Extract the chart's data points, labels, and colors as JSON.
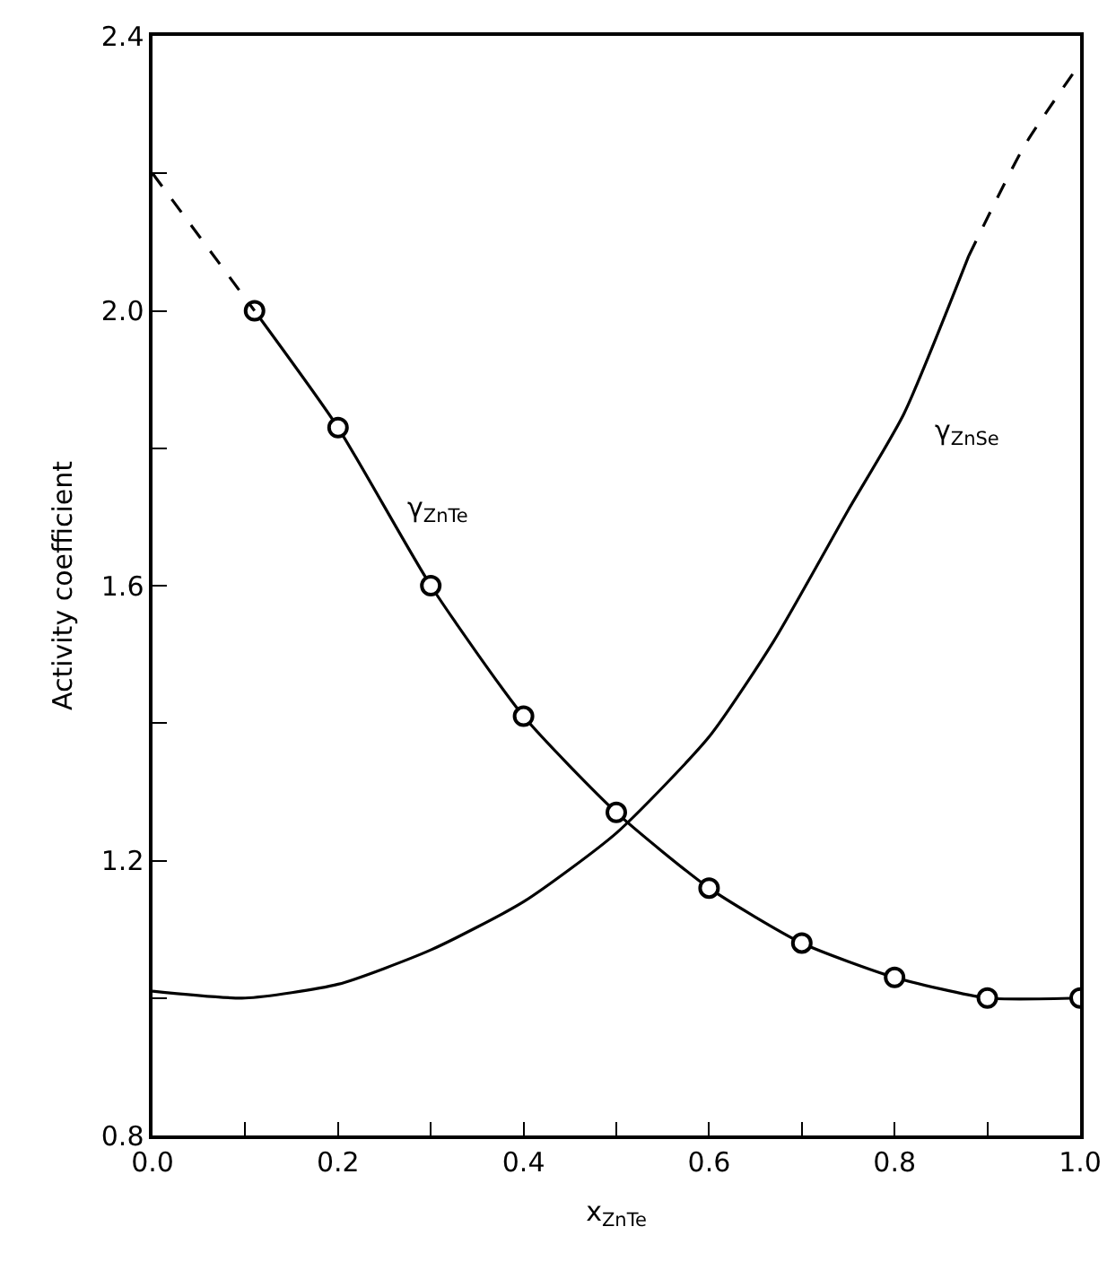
{
  "chart_data": {
    "type": "line",
    "xlabel": "x$_{ZnTe}$",
    "ylabel": "Activity coefficient",
    "xlim": [
      0,
      1
    ],
    "ylim": [
      0.8,
      2.4
    ],
    "xticks": [
      {
        "value": 0,
        "label": "0.0"
      },
      {
        "value": 0.1,
        "label": null
      },
      0.2,
      {
        "value": 0.3,
        "label": null
      },
      0.4,
      {
        "value": 0.5,
        "label": null
      },
      0.6,
      {
        "value": 0.7,
        "label": null
      },
      0.8,
      {
        "value": 0.9,
        "label": null
      },
      {
        "value": 1,
        "label": "1.0"
      }
    ],
    "yticks": [
      0.8,
      {
        "value": 1.0,
        "label": null
      },
      1.2,
      {
        "value": 1.4,
        "label": null
      },
      1.6,
      {
        "value": 1.8,
        "label": null
      },
      {
        "value": 2,
        "label": "2.0"
      },
      {
        "value": 2.2,
        "label": null
      },
      2.4
    ],
    "grid": false,
    "series": [
      {
        "color": "#000000",
        "marker": "circle",
        "line_style": "solid",
        "x": [
          0.11,
          0.2,
          0.3,
          0.4,
          0.5,
          0.6,
          0.7,
          0.8,
          0.9,
          1.0
        ],
        "values": [
          2.0,
          1.83,
          1.6,
          1.41,
          1.27,
          1.16,
          1.08,
          1.03,
          1.0,
          1.0
        ]
      },
      {
        "color": "#000000",
        "marker": "none",
        "line_style": "dashed",
        "x": [
          0,
          0.11
        ],
        "values": [
          2.2,
          2.0
        ]
      },
      {
        "color": "#000000",
        "marker": "none",
        "line_style": "solid",
        "x": [
          0,
          0.1,
          0.2,
          0.3,
          0.4,
          0.5,
          0.6,
          0.67,
          0.75,
          0.81,
          0.88
        ],
        "values": [
          1.01,
          1.0,
          1.02,
          1.07,
          1.14,
          1.24,
          1.38,
          1.52,
          1.71,
          1.85,
          2.08
        ]
      },
      {
        "color": "#000000",
        "marker": "none",
        "line_style": "dashed",
        "x": [
          0.88,
          0.94,
          1.0
        ],
        "values": [
          2.08,
          2.24,
          2.36
        ]
      }
    ],
    "annotations": [
      "γ$_{ZnTe}$",
      "γ$_{ZnSe}$"
    ]
  }
}
